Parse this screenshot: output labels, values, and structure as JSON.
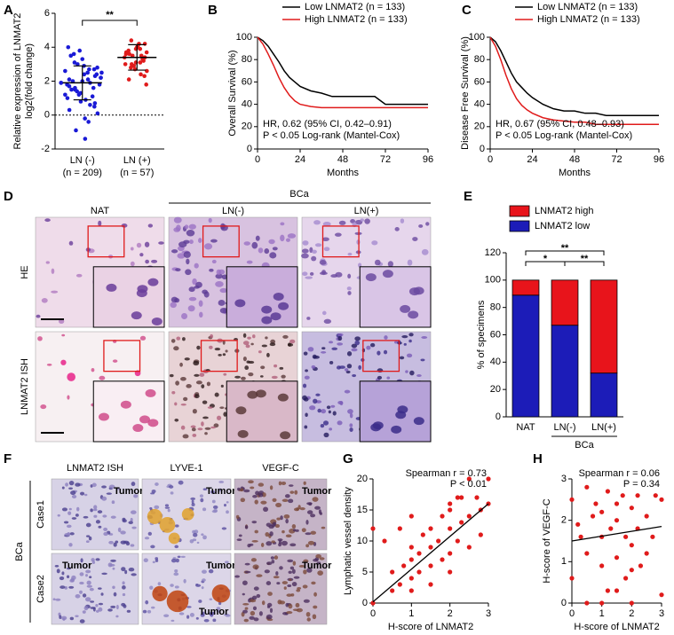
{
  "chart_data": [
    {
      "type": "dotplot",
      "panel": "A",
      "ylabel": [
        "Relative expression of LNMAT2",
        "log2(fold change)"
      ],
      "categories": [
        "LN (-)",
        "LN (+)"
      ],
      "category_notes": [
        "(n = 209)",
        "(n = 57)"
      ],
      "ylim": [
        -2,
        6
      ],
      "yticks": [
        -2,
        0,
        2,
        4,
        6
      ],
      "reference_line": 0,
      "significance": "**",
      "groups": [
        {
          "color": "#1a1ad6",
          "mean": 1.9,
          "sd": 1.0,
          "values": [
            1.9,
            2.1,
            1.5,
            2.4,
            0.8,
            1.2,
            2.7,
            3.1,
            1.8,
            2.0,
            0.3,
            -0.4,
            1.6,
            2.2,
            2.9,
            3.5,
            1.1,
            1.4,
            2.5,
            0.9,
            1.7,
            2.3,
            3.8,
            4.0,
            -1.4,
            -0.9,
            0.5,
            1.3,
            2.6,
            1.9,
            2.0,
            2.8,
            3.3,
            1.0,
            0.6,
            1.5,
            2.2,
            2.4,
            1.8,
            1.6,
            3.0,
            0.1,
            -0.2,
            2.1,
            2.7,
            1.2,
            1.9,
            2.5,
            3.6,
            0.7
          ]
        },
        {
          "color": "#e01b1b",
          "mean": 3.4,
          "sd": 0.75,
          "values": [
            3.4,
            3.1,
            2.8,
            4.2,
            3.9,
            3.6,
            2.4,
            3.0,
            3.7,
            4.0,
            2.1,
            3.3,
            3.5,
            2.6,
            4.1,
            3.8,
            3.2,
            2.9,
            1.8,
            4.2,
            3.6,
            3.4,
            2.7,
            3.0,
            3.9,
            4.4,
            2.3,
            3.1,
            3.7,
            3.5
          ]
        }
      ]
    },
    {
      "type": "line",
      "panel": "B",
      "ylabel": "Overall Survival (%)",
      "xlabel": "Months",
      "xlim": [
        0,
        96
      ],
      "xticks": [
        0,
        24,
        48,
        72,
        96
      ],
      "ylim": [
        0,
        100
      ],
      "yticks": [
        0,
        20,
        40,
        60,
        80,
        100
      ],
      "x": [
        0,
        3,
        6,
        9,
        12,
        15,
        18,
        21,
        24,
        30,
        36,
        42,
        48,
        54,
        60,
        66,
        72,
        84,
        90,
        96
      ],
      "series": [
        {
          "name": "Low LNMAT2 (n = 133)",
          "color": "#000000",
          "values": [
            100,
            97,
            92,
            85,
            78,
            70,
            64,
            60,
            56,
            52,
            50,
            47,
            47,
            47,
            47,
            47,
            40,
            40,
            40,
            40
          ]
        },
        {
          "name": "High LNMAT2 (n = 133)",
          "color": "#e01b1b",
          "values": [
            100,
            94,
            85,
            75,
            64,
            55,
            48,
            43,
            40,
            38,
            37,
            37,
            37,
            37,
            37,
            37,
            37,
            37,
            37,
            37
          ]
        }
      ],
      "annotations": [
        "HR, 0.62 (95% CI, 0.42–0.91)",
        "P < 0.05 Log-rank (Mantel-Cox)"
      ]
    },
    {
      "type": "line",
      "panel": "C",
      "ylabel": "Disease Free Survival (%)",
      "xlabel": "Months",
      "xlim": [
        0,
        96
      ],
      "xticks": [
        0,
        24,
        48,
        72,
        96
      ],
      "ylim": [
        0,
        100
      ],
      "yticks": [
        0,
        20,
        40,
        60,
        80,
        100
      ],
      "x": [
        0,
        3,
        6,
        9,
        12,
        15,
        18,
        21,
        24,
        30,
        36,
        42,
        48,
        54,
        60,
        66,
        72,
        84,
        90,
        96
      ],
      "series": [
        {
          "name": "Low LNMAT2 (n = 133)",
          "color": "#000000",
          "values": [
            100,
            96,
            88,
            78,
            68,
            60,
            55,
            50,
            46,
            40,
            36,
            34,
            34,
            32,
            32,
            30,
            30,
            30,
            30,
            30
          ]
        },
        {
          "name": "High LNMAT2 (n = 133)",
          "color": "#e01b1b",
          "values": [
            100,
            92,
            80,
            66,
            54,
            45,
            39,
            35,
            32,
            28,
            26,
            25,
            24,
            24,
            22,
            22,
            22,
            22,
            22,
            22
          ]
        }
      ],
      "annotations": [
        "HR, 0.67 (95% CI, 0.48–0.93)",
        "P < 0.05 Log-rank (Mantel-Cox)"
      ]
    },
    {
      "type": "bar",
      "panel": "E",
      "ylabel": "% of specimens",
      "stacked": true,
      "categories": [
        "NAT",
        "LN(-)",
        "LN(+)"
      ],
      "group_label": "BCa",
      "ylim": [
        0,
        120
      ],
      "yticks": [
        0,
        20,
        40,
        60,
        80,
        100,
        120
      ],
      "series": [
        {
          "name": "LNMAT2 low",
          "color": "#1c1cb8",
          "values": [
            89,
            67,
            32
          ]
        },
        {
          "name": "LNMAT2 high",
          "color": "#e8141b",
          "values": [
            11,
            33,
            68
          ]
        }
      ],
      "significance": [
        "*",
        "**",
        "**"
      ]
    },
    {
      "type": "scatter",
      "panel": "G",
      "ylabel": "Lymphatic vessel density",
      "xlabel": "H-score of LNMAT2",
      "xlim": [
        0,
        3
      ],
      "xticks": [
        0,
        1,
        2,
        3
      ],
      "ylim": [
        0,
        20
      ],
      "yticks": [
        0,
        5,
        10,
        15,
        20
      ],
      "color": "#e01b1b",
      "x": [
        0,
        0,
        0.3,
        0.5,
        0.5,
        0.7,
        0.8,
        1,
        1,
        1,
        1,
        1.2,
        1.2,
        1.3,
        1.5,
        1.5,
        1.5,
        1.5,
        1.7,
        1.8,
        1.8,
        2,
        2,
        2,
        2,
        2.2,
        2.2,
        2.3,
        2.3,
        2.5,
        2.5,
        2.5,
        2.7,
        2.8,
        2.8,
        3,
        3,
        1,
        0.7,
        2
      ],
      "values": [
        12,
        0,
        10,
        2,
        5,
        3,
        6,
        4,
        7,
        9,
        2,
        5,
        8,
        11,
        6,
        9,
        12,
        3,
        10,
        7,
        14,
        8,
        12,
        15,
        5,
        10,
        17,
        13,
        17,
        9,
        14,
        20,
        17,
        15,
        11,
        16,
        20,
        14,
        12,
        16
      ],
      "fit": {
        "x": [
          0,
          3
        ],
        "y": [
          0.2,
          16
        ]
      },
      "annotations": [
        "Spearman r = 0.73",
        "P < 0.01"
      ]
    },
    {
      "type": "scatter",
      "panel": "H",
      "ylabel": "H-score of VEGF-C",
      "xlabel": "H-score of LNMAT2",
      "xlim": [
        0,
        3
      ],
      "xticks": [
        0,
        1,
        2,
        3
      ],
      "ylim": [
        0,
        3
      ],
      "yticks": [
        0,
        1,
        2,
        3
      ],
      "color": "#e01b1b",
      "x": [
        0,
        0,
        0.2,
        0.3,
        0.5,
        0.5,
        0.7,
        0.8,
        1,
        1,
        1,
        1.2,
        1.2,
        1.3,
        1.5,
        1.5,
        1.5,
        1.7,
        1.8,
        1.8,
        2,
        2,
        2,
        2.2,
        2.2,
        2.3,
        2.5,
        2.5,
        2.7,
        2.8,
        3,
        3,
        0.5,
        1,
        1.5,
        2
      ],
      "values": [
        2.5,
        0.6,
        1.9,
        1.6,
        1.2,
        0,
        2.1,
        2.4,
        0.9,
        1.6,
        2.2,
        0.3,
        2.7,
        1.8,
        1.1,
        2.0,
        2.4,
        2.6,
        1.6,
        0.6,
        0,
        1.4,
        2.3,
        1.8,
        2.6,
        0.9,
        1.2,
        2.1,
        1.6,
        2.6,
        0.2,
        2.5,
        2.8,
        0,
        0.3,
        0.8
      ],
      "fit": {
        "x": [
          0,
          3
        ],
        "y": [
          1.5,
          1.85
        ]
      },
      "annotations": [
        "Spearman r = 0.06",
        "P = 0.34"
      ]
    }
  ],
  "panel_d": {
    "panel": "D",
    "group": "BCa",
    "columns": [
      "NAT",
      "LN(-)",
      "LN(+)"
    ],
    "rows": [
      "HE",
      "LNMAT2 ISH"
    ]
  },
  "panel_f": {
    "panel": "F",
    "group": "BCa",
    "columns": [
      "LNMAT2 ISH",
      "LYVE-1",
      "VEGF-C"
    ],
    "rows": [
      "Case1",
      "Case2"
    ],
    "tumor_labels": [
      [
        [
          "Tumor"
        ],
        [
          "Tumor"
        ],
        [
          "Tumor"
        ]
      ],
      [
        [
          "Tumor"
        ],
        [
          "Tumor",
          "Tumor"
        ],
        [
          "Tumor"
        ]
      ]
    ]
  }
}
